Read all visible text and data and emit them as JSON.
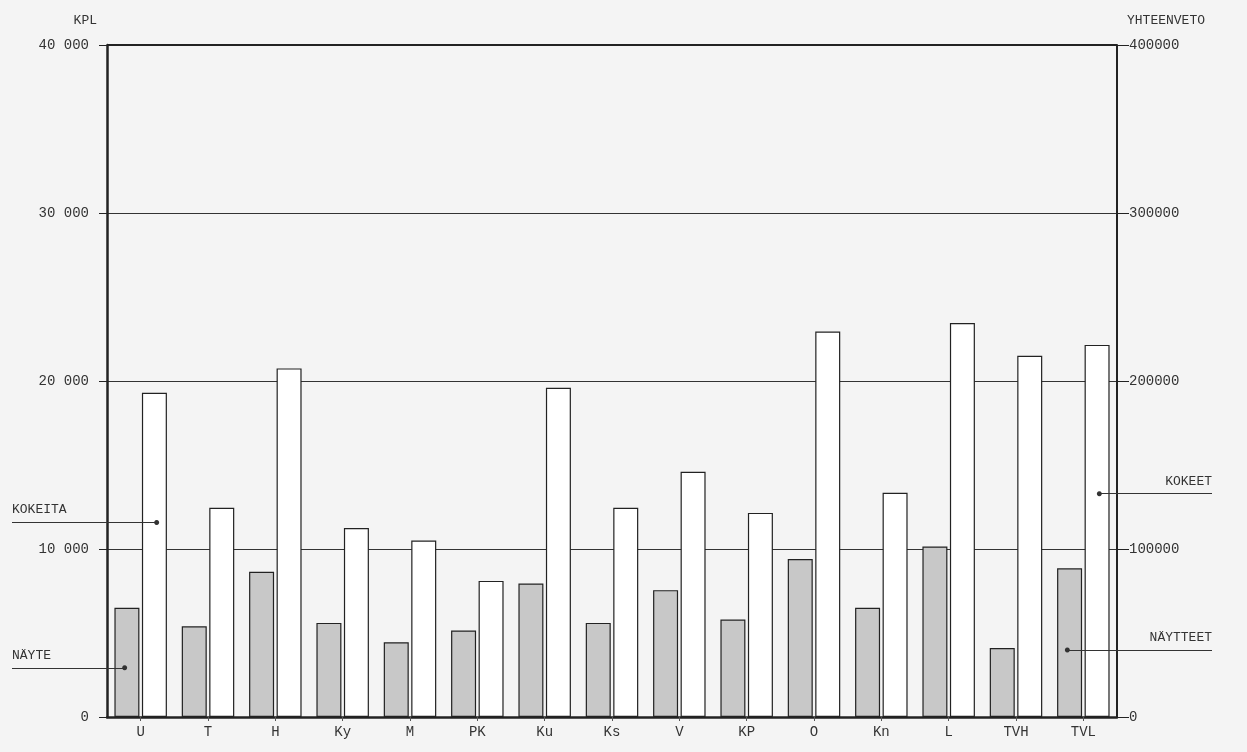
{
  "chart_data": {
    "type": "bar",
    "ylabel": "KPL",
    "y2label": "YHTEENVETO",
    "categories": [
      "U",
      "T",
      "H",
      "Ky",
      "M",
      "PK",
      "Ku",
      "Ks",
      "V",
      "KP",
      "O",
      "Kn",
      "L",
      "TVH",
      "TVL"
    ],
    "series": [
      {
        "name": "NÄYTE",
        "color": "#c8c8c8",
        "values": [
          6500,
          5400,
          8650,
          5600,
          4450,
          5150,
          7950,
          5600,
          7550,
          5800,
          9400,
          6500,
          10150,
          null,
          null
        ]
      },
      {
        "name": "KOKEITA",
        "color": "#ffffff",
        "values": [
          19300,
          12450,
          20750,
          11250,
          10500,
          8100,
          19600,
          12450,
          14600,
          12150,
          22950,
          13350,
          23450,
          null,
          null
        ]
      },
      {
        "name": "NÄYTTEET",
        "color": "#c8c8c8",
        "axis": "y2",
        "values": [
          null,
          null,
          null,
          null,
          null,
          null,
          null,
          null,
          null,
          null,
          null,
          null,
          null,
          41000,
          88500
        ]
      },
      {
        "name": "KOKEET",
        "color": "#ffffff",
        "axis": "y2",
        "values": [
          null,
          null,
          null,
          null,
          null,
          null,
          null,
          null,
          null,
          null,
          null,
          null,
          null,
          215000,
          221500
        ]
      }
    ],
    "ylim": [
      0,
      40000
    ],
    "yticks": [
      0,
      {
        "value": 10000,
        "label": "10 000"
      },
      {
        "value": 20000,
        "label": "20 000"
      },
      {
        "value": 30000,
        "label": "30 000"
      },
      {
        "value": 40000,
        "label": "40 000"
      }
    ],
    "y2lim": [
      0,
      400000
    ],
    "y2ticks": [
      0,
      100000,
      200000,
      300000,
      400000
    ],
    "grid": "y",
    "legend": false
  }
}
